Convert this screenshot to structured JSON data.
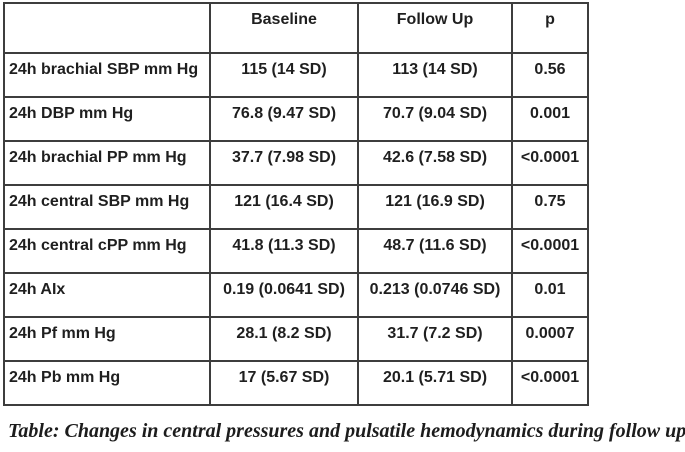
{
  "table": {
    "headers": [
      "",
      "Baseline",
      "Follow Up",
      "p"
    ],
    "rows": [
      {
        "label": "24h brachial SBP mm Hg",
        "baseline": "115 (14 SD)",
        "follow_up": "113 (14 SD)",
        "p": "0.56"
      },
      {
        "label": "24h DBP mm Hg",
        "baseline": "76.8 (9.47 SD)",
        "follow_up": "70.7 (9.04 SD)",
        "p": "0.001"
      },
      {
        "label": "24h brachial PP mm Hg",
        "baseline": "37.7 (7.98 SD)",
        "follow_up": "42.6 (7.58 SD)",
        "p": "<0.0001"
      },
      {
        "label": "24h central SBP mm Hg",
        "baseline": "121 (16.4 SD)",
        "follow_up": "121 (16.9 SD)",
        "p": "0.75"
      },
      {
        "label": "24h central cPP mm Hg",
        "baseline": "41.8 (11.3 SD)",
        "follow_up": "48.7 (11.6 SD)",
        "p": "<0.0001"
      },
      {
        "label": "24h AIx",
        "baseline": "0.19 (0.0641 SD)",
        "follow_up": "0.213 (0.0746 SD)",
        "p": "0.01"
      },
      {
        "label": "24h Pf mm Hg",
        "baseline": "28.1 (8.2 SD)",
        "follow_up": "31.7 (7.2 SD)",
        "p": "0.0007"
      },
      {
        "label": "24h Pb mm Hg",
        "baseline": "17 (5.67 SD)",
        "follow_up": "20.1 (5.71 SD)",
        "p": "<0.0001"
      }
    ],
    "caption": "Table: Changes in central pressures and pulsatile hemodynamics during follow up"
  },
  "colors": {
    "border": "#3d3d3d",
    "text": "#1f1f1f",
    "background": "#ffffff"
  }
}
